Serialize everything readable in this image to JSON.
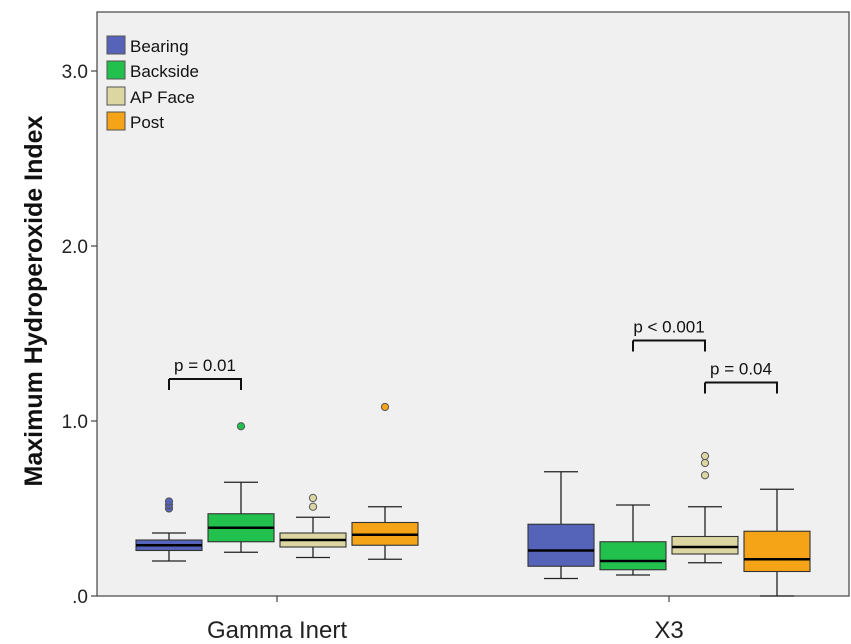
{
  "chart_data": {
    "type": "box",
    "ylabel": "Maximum Hydroperoxide Index",
    "xlabel": "",
    "ylim": [
      0,
      3.3
    ],
    "yticks": [
      0,
      1,
      2,
      3
    ],
    "ytick_labels": [
      ".0",
      "1.0",
      "2.0",
      "3.0"
    ],
    "grid": false,
    "legend_position": "top-left",
    "categories": [
      "Gamma Inert",
      "X3"
    ],
    "series": [
      {
        "name": "Bearing",
        "color": "#5563b8",
        "boxes": [
          {
            "category": "Gamma Inert",
            "whisker_low": 0.2,
            "q1": 0.26,
            "median": 0.29,
            "q3": 0.32,
            "whisker_high": 0.36,
            "outliers": [
              0.5,
              0.52,
              0.54
            ]
          },
          {
            "category": "X3",
            "whisker_low": 0.1,
            "q1": 0.17,
            "median": 0.26,
            "q3": 0.41,
            "whisker_high": 0.71,
            "outliers": []
          }
        ]
      },
      {
        "name": "Backside",
        "color": "#22c04c",
        "boxes": [
          {
            "category": "Gamma Inert",
            "whisker_low": 0.25,
            "q1": 0.31,
            "median": 0.39,
            "q3": 0.47,
            "whisker_high": 0.65,
            "outliers": [
              0.97
            ]
          },
          {
            "category": "X3",
            "whisker_low": 0.12,
            "q1": 0.15,
            "median": 0.2,
            "q3": 0.31,
            "whisker_high": 0.52,
            "outliers": []
          }
        ]
      },
      {
        "name": "AP Face",
        "color": "#dcd7a2",
        "boxes": [
          {
            "category": "Gamma Inert",
            "whisker_low": 0.22,
            "q1": 0.28,
            "median": 0.32,
            "q3": 0.36,
            "whisker_high": 0.45,
            "outliers": [
              0.51,
              0.56
            ]
          },
          {
            "category": "X3",
            "whisker_low": 0.19,
            "q1": 0.24,
            "median": 0.28,
            "q3": 0.34,
            "whisker_high": 0.51,
            "outliers": [
              0.69,
              0.76,
              0.8
            ]
          }
        ]
      },
      {
        "name": "Post",
        "color": "#f5a418",
        "boxes": [
          {
            "category": "Gamma Inert",
            "whisker_low": 0.21,
            "q1": 0.29,
            "median": 0.35,
            "q3": 0.42,
            "whisker_high": 0.51,
            "outliers": [
              1.08
            ]
          },
          {
            "category": "X3",
            "whisker_low": 0.0,
            "q1": 0.14,
            "median": 0.21,
            "q3": 0.37,
            "whisker_high": 0.61,
            "outliers": []
          }
        ]
      }
    ],
    "annotations": [
      {
        "text": "p = 0.01",
        "category": "Gamma Inert",
        "from_series": 0,
        "to_series": 1,
        "y": 1.24
      },
      {
        "text": "p < 0.001",
        "category": "X3",
        "from_series": 1,
        "to_series": 2,
        "y": 1.46
      },
      {
        "text": "p = 0.04",
        "category": "X3",
        "from_series": 2,
        "to_series": 3,
        "y": 1.22
      }
    ]
  }
}
